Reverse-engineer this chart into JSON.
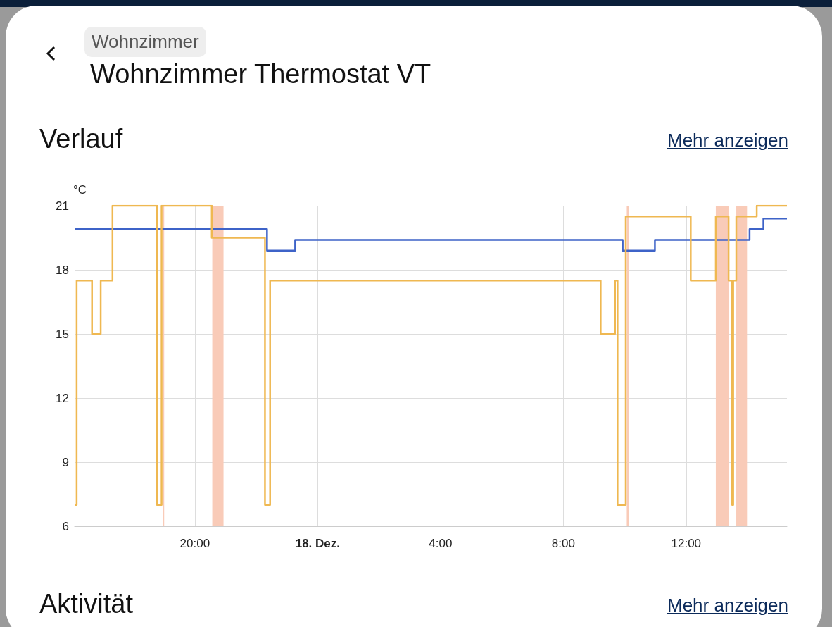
{
  "chart_data": {
    "type": "step",
    "subtitle": "Wohnzimmer",
    "title": "Wohnzimmer Thermostat VT",
    "annotations": [
      "Verlauf",
      "Mehr anzeigen",
      "Aktivität",
      "Mehr anzeigen"
    ],
    "ylabel": "°C",
    "xlim": [
      "--12-17T16:05",
      "--12-18T15:17"
    ],
    "xticks": [
      {
        "value": "--12-17T20:00",
        "label": "20:00"
      },
      {
        "value": "--12-18T00:00",
        "label": "18. Dez."
      },
      {
        "value": "--12-18T04:00",
        "label": "4:00"
      },
      {
        "value": "--12-18T08:00",
        "label": "8:00"
      },
      {
        "value": "--12-18T12:00",
        "label": "12:00"
      }
    ],
    "ylim": [
      6,
      21
    ],
    "yticks": [
      6,
      9,
      12,
      15,
      18,
      21
    ],
    "grid": true,
    "series": [
      {
        "color": "#3e63c8",
        "x": [
          "--12-17T16:05",
          "--12-17T22:21",
          "--12-17T23:16",
          "--12-18T09:56",
          "--12-18T10:59",
          "--12-18T14:04",
          "--12-18T14:31",
          "--12-18T15:17"
        ],
        "values": [
          19.9,
          18.9,
          19.4,
          18.9,
          19.4,
          19.9,
          20.4,
          20.4
        ]
      },
      {
        "color": "#efb851",
        "x": [
          "--12-17T16:05",
          "--12-17T16:09",
          "--12-17T16:39",
          "--12-17T16:56",
          "--12-17T17:19",
          "--12-17T18:46",
          "--12-17T18:55",
          "--12-17T20:33",
          "--12-17T22:17",
          "--12-17T22:27",
          "--12-18T09:13",
          "--12-18T09:41",
          "--12-18T09:46",
          "--12-18T10:02",
          "--12-18T12:09",
          "--12-18T12:58",
          "--12-18T13:23",
          "--12-18T13:30",
          "--12-18T13:32",
          "--12-18T13:38",
          "--12-18T14:18",
          "--12-18T15:17"
        ],
        "values": [
          7,
          17.5,
          15,
          17.5,
          21,
          7,
          21,
          19.5,
          7,
          17.5,
          15,
          17.5,
          7,
          20.5,
          17.5,
          20.5,
          17.5,
          7,
          17.5,
          20.5,
          21,
          21
        ]
      }
    ],
    "bands": [
      {
        "axis": "x",
        "from": "--12-17T18:57",
        "to": "--12-17T19:00",
        "color": "#f9cbb8"
      },
      {
        "axis": "x",
        "from": "--12-17T20:34",
        "to": "--12-17T20:56",
        "color": "#f9cbb8"
      },
      {
        "axis": "x",
        "from": "--12-18T10:04",
        "to": "--12-18T10:08",
        "color": "#f9cbb8"
      },
      {
        "axis": "x",
        "from": "--12-18T12:58",
        "to": "--12-18T13:23",
        "color": "#f9cbb8"
      },
      {
        "axis": "x",
        "from": "--12-18T13:38",
        "to": "--12-18T13:59",
        "color": "#f9cbb8"
      }
    ]
  }
}
